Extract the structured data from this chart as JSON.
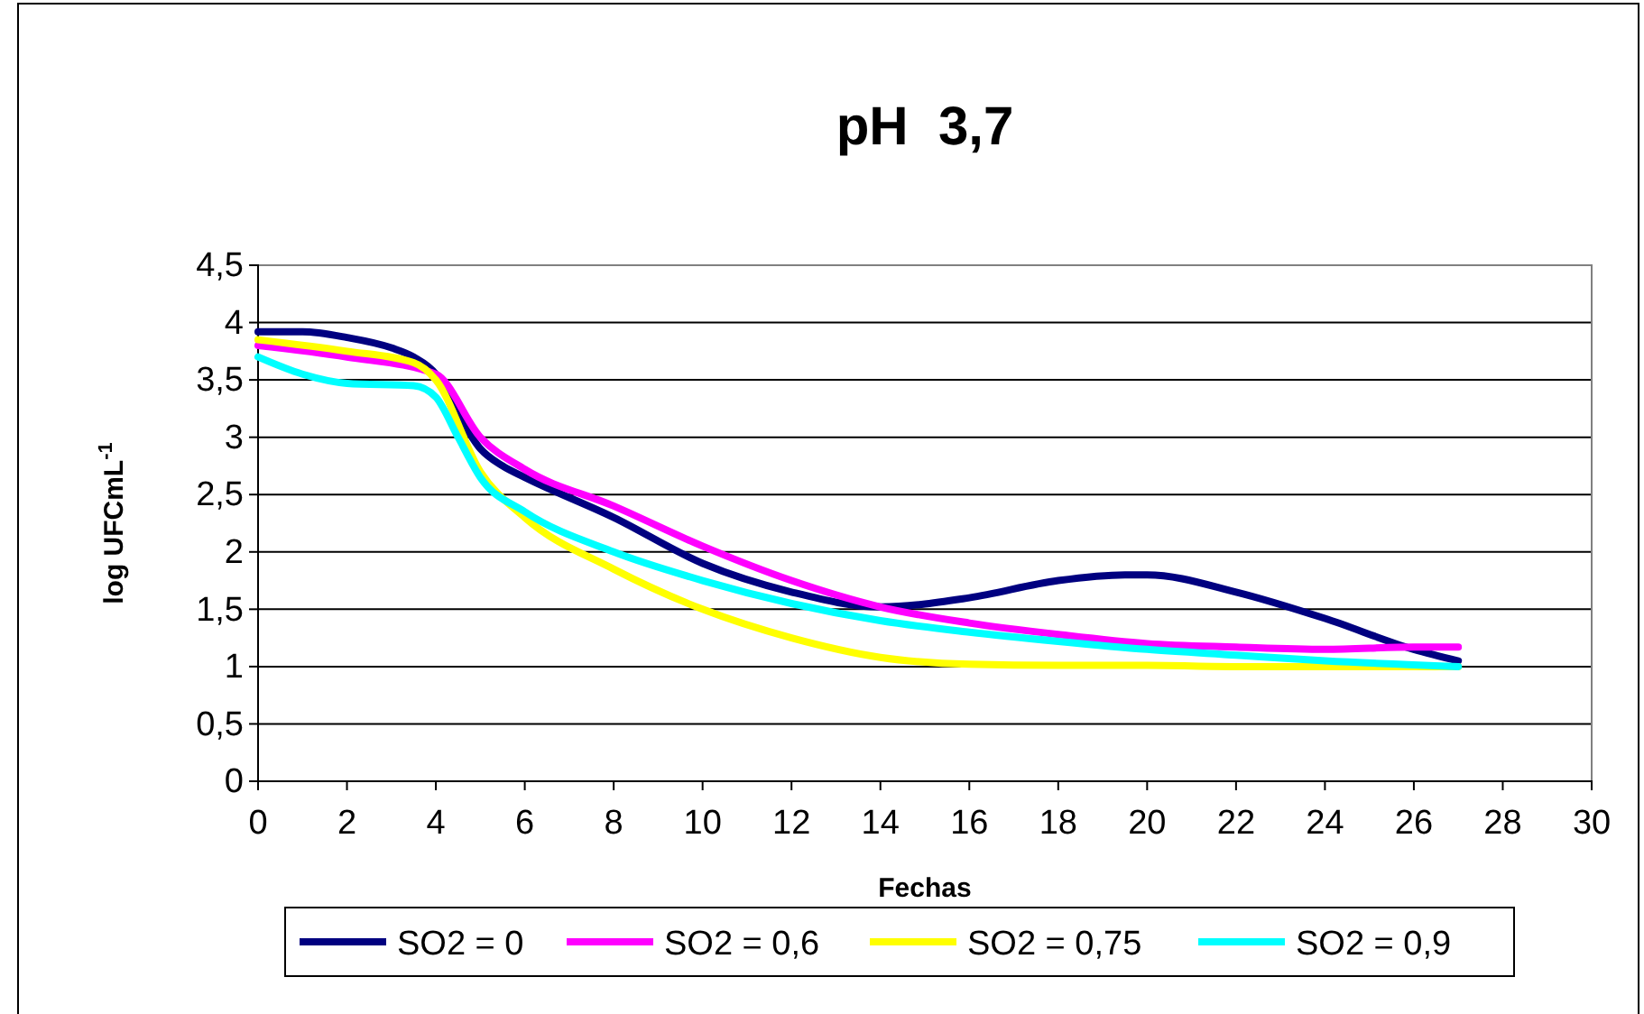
{
  "chart_data": {
    "type": "line",
    "title": "pH  3,7",
    "xlabel": "Fechas",
    "ylabel": "log UFCmL$^{-1}$",
    "xlim": [
      0,
      30
    ],
    "xticks": [
      0,
      2,
      4,
      6,
      8,
      10,
      12,
      14,
      16,
      18,
      20,
      22,
      24,
      26,
      28,
      30
    ],
    "ylim": [
      0,
      4.5
    ],
    "yticks": [
      0,
      {
        "value": 0.5,
        "label": "0,5"
      },
      1,
      {
        "value": 1.5,
        "label": "1,5"
      },
      2,
      {
        "value": 2.5,
        "label": "2,5"
      },
      3,
      {
        "value": 3.5,
        "label": "3,5"
      },
      4,
      {
        "value": 4.5,
        "label": "4,5"
      }
    ],
    "grid": "y",
    "legend": "bottom",
    "marker": "none",
    "line_style": "solid",
    "series": [
      {
        "name": "SO2 = 0",
        "color": "#000080",
        "x": [
          0,
          1,
          2,
          3,
          3.5,
          4,
          4.5,
          5,
          5.5,
          6,
          8,
          10,
          12,
          14,
          16,
          18,
          19.5,
          20,
          22,
          24,
          26,
          27
        ],
        "values": [
          3.92,
          3.92,
          3.87,
          3.78,
          3.7,
          3.55,
          3.2,
          2.9,
          2.75,
          2.65,
          2.3,
          1.9,
          1.65,
          1.52,
          1.6,
          1.75,
          1.8,
          1.8,
          1.65,
          1.42,
          1.15,
          1.05
        ]
      },
      {
        "name": "SO2 = 0,6",
        "color": "#ff00ff",
        "x": [
          0,
          2,
          4,
          5,
          6,
          8,
          10,
          12,
          14,
          16,
          18,
          20,
          22,
          24,
          26,
          27
        ],
        "values": [
          3.8,
          3.7,
          3.55,
          3.0,
          2.72,
          2.4,
          2.05,
          1.75,
          1.52,
          1.38,
          1.28,
          1.2,
          1.17,
          1.15,
          1.17,
          1.17
        ]
      },
      {
        "name": "SO2 = 0,75",
        "color": "#ffff00",
        "x": [
          0,
          2,
          3.5,
          4,
          5,
          6,
          8,
          10,
          12,
          14,
          16,
          18,
          20,
          22,
          24,
          27
        ],
        "values": [
          3.85,
          3.75,
          3.65,
          3.5,
          2.7,
          2.3,
          1.85,
          1.5,
          1.25,
          1.08,
          1.02,
          1.01,
          1.01,
          1.0,
          1.0,
          1.0
        ]
      },
      {
        "name": "SO2 = 0,9",
        "color": "#00ffff",
        "x": [
          0,
          1,
          2,
          3.5,
          4,
          4.5,
          5,
          6,
          8,
          10,
          12,
          14,
          16,
          18,
          20,
          22,
          24,
          27
        ],
        "values": [
          3.7,
          3.55,
          3.47,
          3.45,
          3.35,
          3.0,
          2.65,
          2.35,
          2.0,
          1.75,
          1.55,
          1.4,
          1.3,
          1.22,
          1.15,
          1.1,
          1.05,
          1.0
        ]
      }
    ]
  }
}
